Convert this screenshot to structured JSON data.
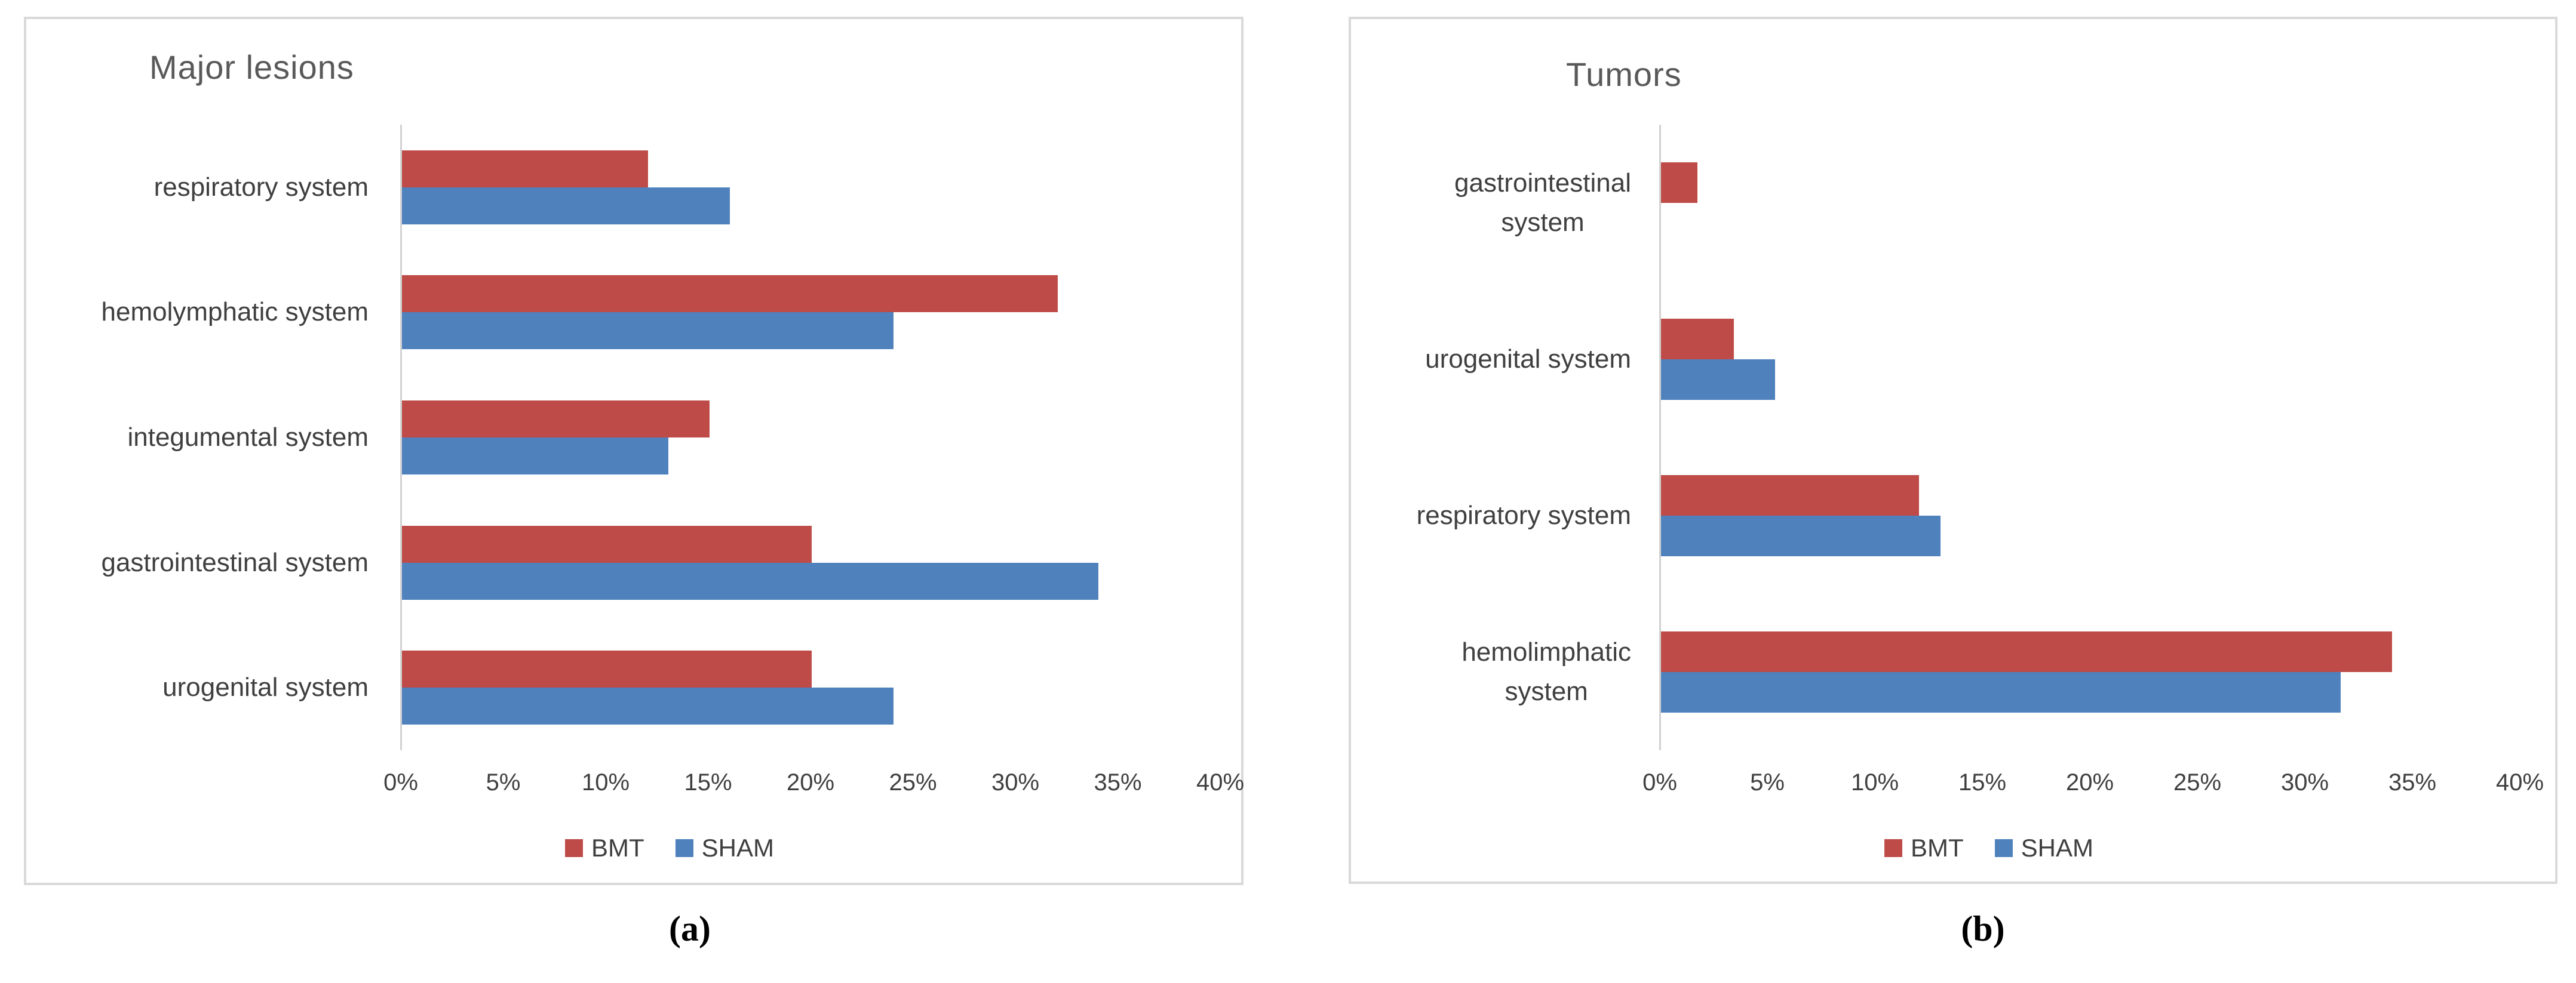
{
  "figure": {
    "caption_a": "(a)",
    "caption_b": "(b)"
  },
  "colors": {
    "bmt": "#BE4B48",
    "sham": "#4F81BD",
    "panel_border": "#D9D9D9",
    "axis_line": "#D1D1D1",
    "title_text": "#595959",
    "label_text": "#3F3F3F"
  },
  "chart_data": [
    {
      "type": "bar",
      "orientation": "horizontal",
      "title": "Major lesions",
      "categories": [
        {
          "label": "respiratory system",
          "lines": [
            "respiratory system"
          ]
        },
        {
          "label": "hemolymphatic system",
          "lines": [
            "hemolymphatic system"
          ]
        },
        {
          "label": "integumental system",
          "lines": [
            "integumental system"
          ]
        },
        {
          "label": "gastrointestinal system",
          "lines": [
            "gastrointestinal system"
          ]
        },
        {
          "label": "urogenital system",
          "lines": [
            "urogenital system"
          ]
        }
      ],
      "series": [
        {
          "name": "BMT",
          "color": "#BE4B48",
          "values": [
            12,
            32,
            15,
            20,
            20
          ]
        },
        {
          "name": "SHAM",
          "color": "#4F81BD",
          "values": [
            16,
            24,
            13,
            34,
            24
          ]
        }
      ],
      "x_ticks": [
        "0%",
        "5%",
        "10%",
        "15%",
        "20%",
        "25%",
        "30%",
        "35%",
        "40%"
      ],
      "xlim": [
        0,
        40
      ],
      "x_unit": "%",
      "grid": false,
      "legend_position": "bottom",
      "caption": "(a)"
    },
    {
      "type": "bar",
      "orientation": "horizontal",
      "title": "Tumors",
      "categories": [
        {
          "label": "gastrointestinal system",
          "lines": [
            "gastrointestinal",
            "system"
          ]
        },
        {
          "label": "urogenital system",
          "lines": [
            "urogenital system"
          ]
        },
        {
          "label": "respiratory system",
          "lines": [
            "respiratory system"
          ]
        },
        {
          "label": "hemolimphatic system",
          "lines": [
            "hemolimphatic",
            "system"
          ]
        }
      ],
      "series": [
        {
          "name": "BMT",
          "color": "#BE4B48",
          "values": [
            1.7,
            3.4,
            12,
            34
          ]
        },
        {
          "name": "SHAM",
          "color": "#4F81BD",
          "values": [
            0,
            5.3,
            13,
            31.6
          ]
        }
      ],
      "x_ticks": [
        "0%",
        "5%",
        "10%",
        "15%",
        "20%",
        "25%",
        "30%",
        "35%",
        "40%"
      ],
      "xlim": [
        0,
        40
      ],
      "x_unit": "%",
      "grid": false,
      "legend_position": "bottom",
      "caption": "(b)"
    }
  ]
}
